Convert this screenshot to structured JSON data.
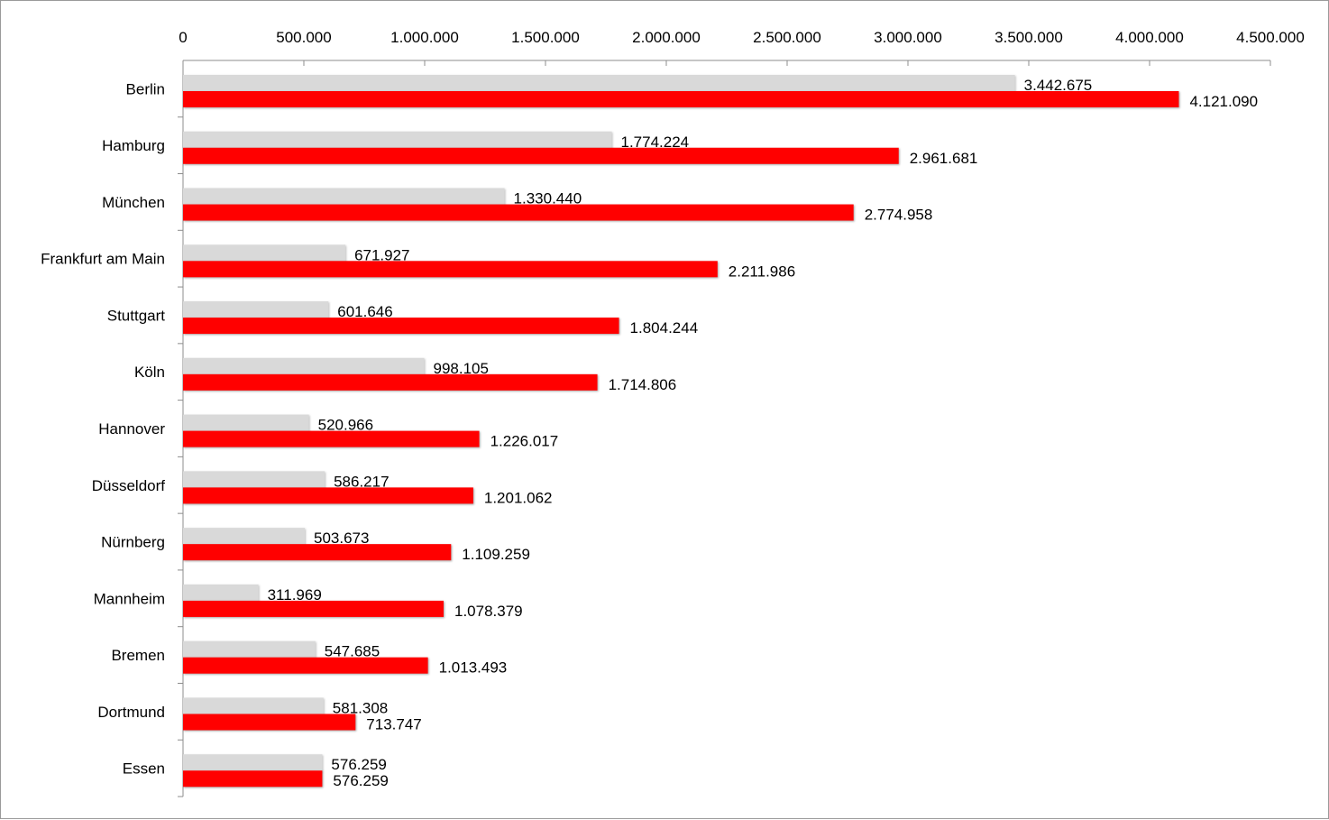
{
  "chart_data": {
    "type": "bar",
    "orientation": "horizontal",
    "xlim": [
      0,
      4500000
    ],
    "xticks": [
      0,
      500000,
      1000000,
      1500000,
      2000000,
      2500000,
      3000000,
      3500000,
      4000000,
      4500000
    ],
    "xtick_labels": [
      "0",
      "500.000",
      "1.000.000",
      "1.500.000",
      "2.000.000",
      "2.500.000",
      "3.000.000",
      "3.500.000",
      "4.000.000",
      "4.500.000"
    ],
    "x_axis_position": "top",
    "grid": false,
    "legend": "none",
    "categories": [
      "Berlin",
      "Hamburg",
      "München",
      "Frankfurt am Main",
      "Stuttgart",
      "Köln",
      "Hannover",
      "Düsseldorf",
      "Nürnberg",
      "Mannheim",
      "Bremen",
      "Dortmund",
      "Essen"
    ],
    "series": [
      {
        "color": "#d9d9d9",
        "values": [
          3442675,
          1774224,
          1330440,
          671927,
          601646,
          998105,
          520966,
          586217,
          503673,
          311969,
          547685,
          581308,
          576259
        ],
        "labels": [
          "3.442.675",
          "1.774.224",
          "1.330.440",
          "671.927",
          "601.646",
          "998.105",
          "520.966",
          "586.217",
          "503.673",
          "311.969",
          "547.685",
          "581.308",
          "576.259"
        ]
      },
      {
        "color": "#ff0000",
        "values": [
          4121090,
          2961681,
          2774958,
          2211986,
          1804244,
          1714806,
          1226017,
          1201062,
          1109259,
          1078379,
          1013493,
          713747,
          576259
        ],
        "labels": [
          "4.121.090",
          "2.961.681",
          "2.774.958",
          "2.211.986",
          "1.804.244",
          "1.714.806",
          "1.226.017",
          "1.201.062",
          "1.109.259",
          "1.078.379",
          "1.013.493",
          "713.747",
          "576.259"
        ]
      }
    ]
  }
}
